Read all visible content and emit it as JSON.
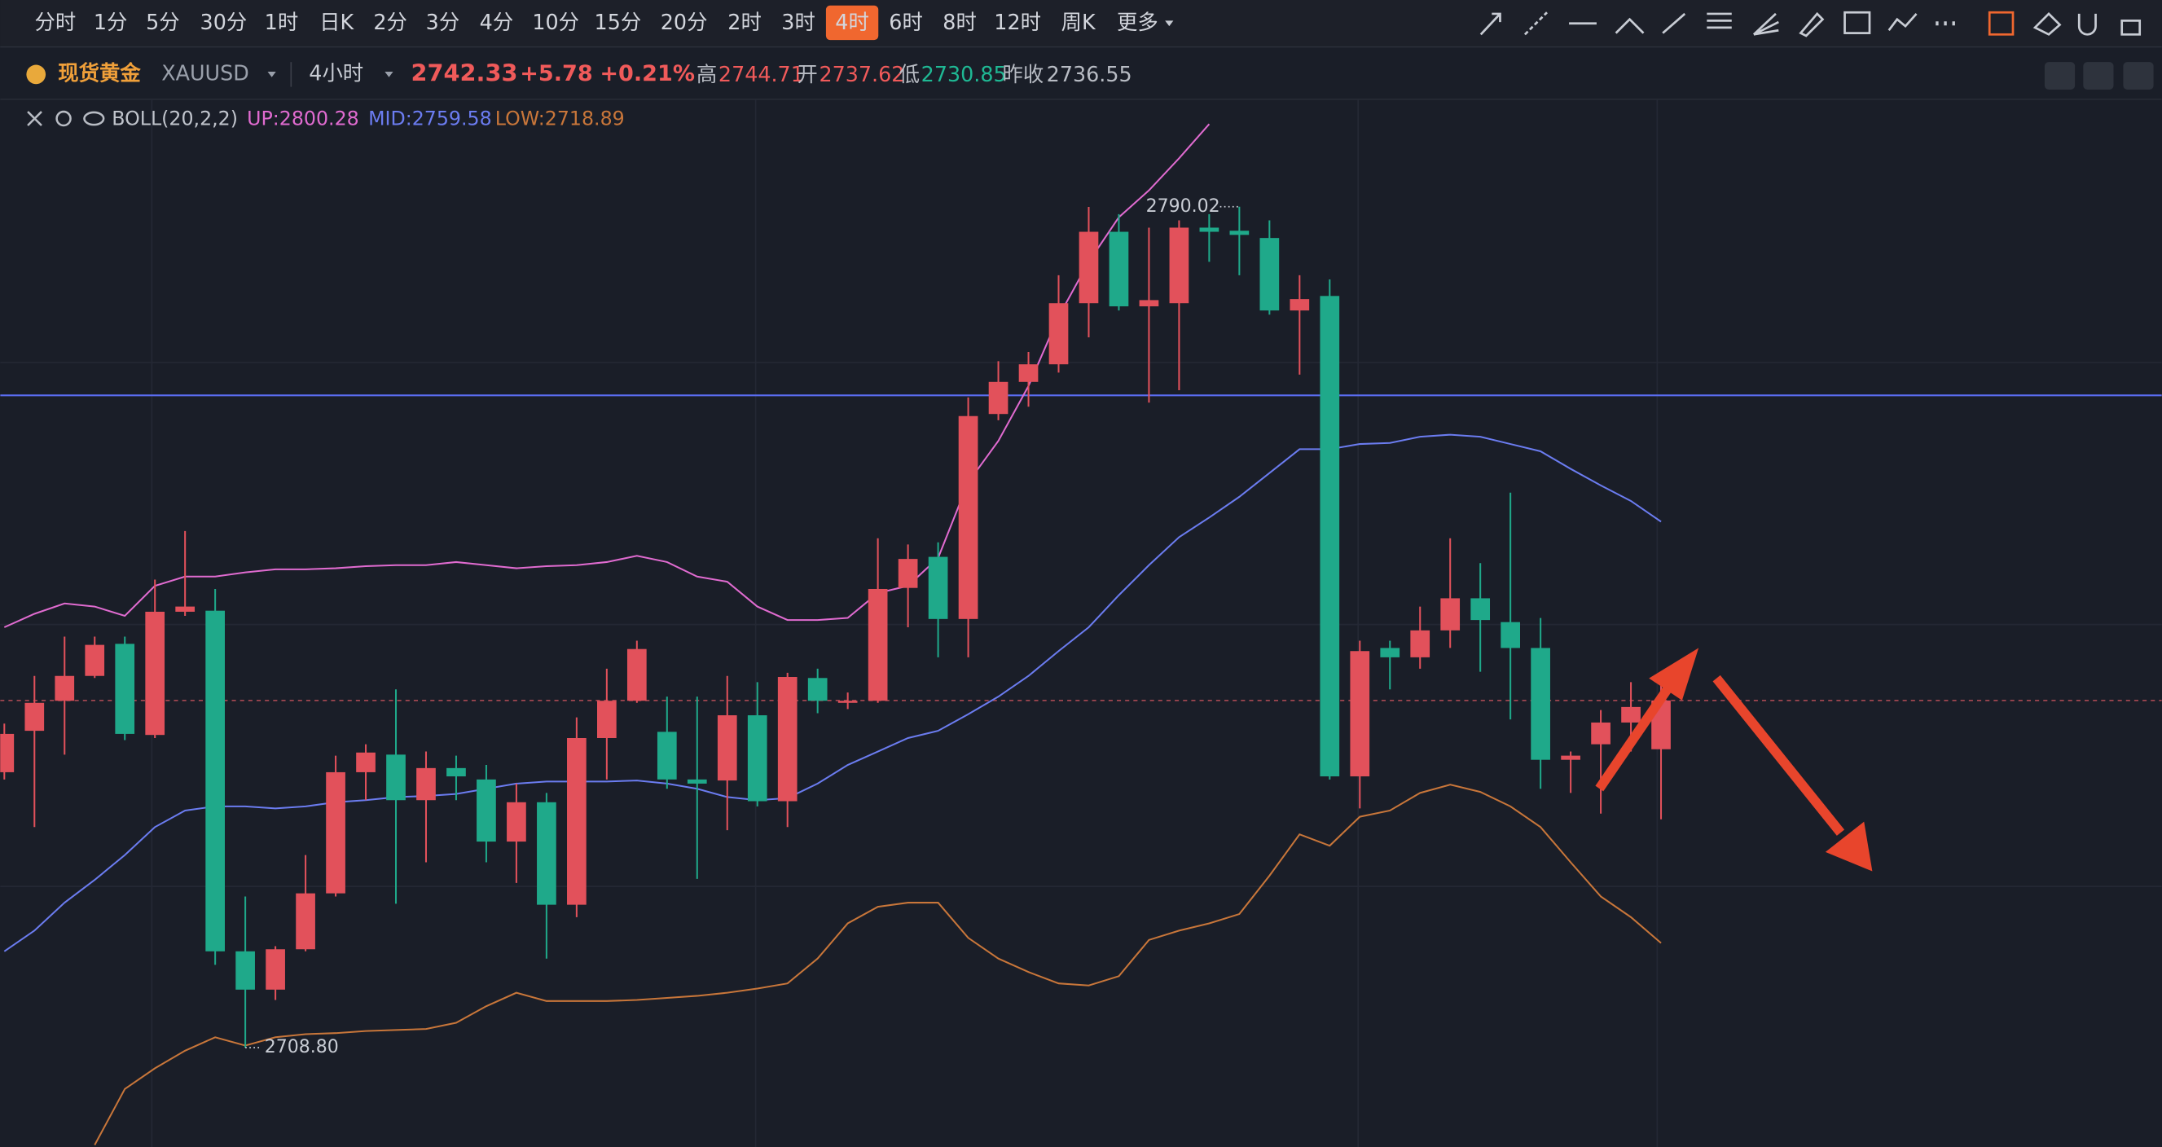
{
  "toolbar": {
    "periods": [
      "分时",
      "1分",
      "5分",
      "30分",
      "1时",
      "日K",
      "2分",
      "3分",
      "4分",
      "10分",
      "15分",
      "20分",
      "2时",
      "3时",
      "4时",
      "6时",
      "8时",
      "12时",
      "周K",
      "更多"
    ],
    "active": "4时"
  },
  "header": {
    "name": "现货黄金",
    "symbol": "XAUUSD",
    "interval": "4小时",
    "price": "2742.33",
    "change": "+5.78",
    "change_pct": "+0.21%",
    "stats": [
      {
        "label": "高",
        "value": "2744.71"
      },
      {
        "label": "开",
        "value": "2737.62"
      },
      {
        "label": "低",
        "value": "2730.85"
      },
      {
        "label": "昨收",
        "value": "2736.55"
      }
    ]
  },
  "indicator": {
    "name": "BOLL(20,2,2)"
  },
  "chart_data": {
    "type": "candlestick",
    "up_color": "#e2515b",
    "down_color": "#1fa98a",
    "ylim": [
      2699.2,
      2800.4
    ],
    "open": [
      2735.4,
      2739.4,
      2742.3,
      2744.7,
      2747.8,
      2739.0,
      2750.9,
      2751.0,
      2718.1,
      2714.4,
      2718.3,
      2723.7,
      2735.4,
      2737.1,
      2732.7,
      2735.8,
      2734.7,
      2728.7,
      2732.5,
      2722.6,
      2738.7,
      2742.3,
      2739.3,
      2734.7,
      2734.6,
      2740.9,
      2732.6,
      2744.5,
      2742.1,
      2742.3,
      2753.2,
      2756.2,
      2750.2,
      2770.0,
      2773.1,
      2774.8,
      2780.7,
      2787.6,
      2780.4,
      2780.7,
      2788.0,
      2787.7,
      2787.0,
      2780.0,
      2781.4,
      2735.0,
      2747.4,
      2746.5,
      2749.1,
      2752.2,
      2749.9,
      2747.4,
      2736.6,
      2738.1,
      2740.2,
      2737.62
    ],
    "high": [
      2740.1,
      2744.7,
      2748.5,
      2748.5,
      2748.5,
      2754.0,
      2758.7,
      2753.1,
      2723.4,
      2718.6,
      2727.4,
      2737.0,
      2738.1,
      2743.4,
      2737.4,
      2737.0,
      2736.1,
      2734.3,
      2733.4,
      2740.7,
      2745.4,
      2748.1,
      2742.7,
      2742.7,
      2744.7,
      2744.1,
      2745.0,
      2745.4,
      2743.1,
      2758.0,
      2757.4,
      2757.6,
      2771.6,
      2775.1,
      2776.0,
      2783.4,
      2790.0,
      2789.3,
      2788.0,
      2788.7,
      2789.3,
      2790.02,
      2788.7,
      2783.4,
      2783.0,
      2748.1,
      2748.1,
      2751.4,
      2758.0,
      2755.6,
      2762.4,
      2750.3,
      2737.4,
      2741.4,
      2744.1,
      2744.71
    ],
    "low": [
      2734.7,
      2730.1,
      2737.1,
      2744.5,
      2738.5,
      2738.7,
      2750.5,
      2716.8,
      2708.8,
      2713.4,
      2718.1,
      2723.4,
      2732.7,
      2722.7,
      2726.7,
      2732.7,
      2726.7,
      2724.7,
      2717.4,
      2721.4,
      2734.7,
      2742.1,
      2733.8,
      2725.1,
      2729.8,
      2732.1,
      2730.1,
      2741.1,
      2741.5,
      2742.1,
      2749.4,
      2746.5,
      2746.5,
      2769.4,
      2770.7,
      2774.0,
      2777.4,
      2780.0,
      2771.1,
      2772.3,
      2784.7,
      2783.4,
      2779.6,
      2773.8,
      2734.7,
      2731.9,
      2743.4,
      2745.4,
      2747.4,
      2745.1,
      2740.5,
      2733.8,
      2733.4,
      2731.4,
      2737.4,
      2730.85
    ],
    "close": [
      2739.1,
      2742.1,
      2744.7,
      2747.7,
      2739.1,
      2750.9,
      2751.4,
      2718.1,
      2714.4,
      2718.3,
      2723.7,
      2735.4,
      2737.3,
      2732.7,
      2735.8,
      2735.0,
      2728.7,
      2732.5,
      2722.6,
      2738.7,
      2742.3,
      2747.3,
      2734.7,
      2734.3,
      2740.9,
      2732.6,
      2744.6,
      2742.3,
      2742.3,
      2753.1,
      2756.0,
      2750.2,
      2769.8,
      2773.1,
      2774.8,
      2780.7,
      2787.6,
      2780.4,
      2781.0,
      2788.0,
      2787.6,
      2787.3,
      2780.0,
      2781.1,
      2735.0,
      2747.1,
      2746.5,
      2749.1,
      2752.2,
      2750.1,
      2747.4,
      2736.6,
      2737.0,
      2740.2,
      2741.7,
      2742.33
    ],
    "series": [
      {
        "name": "UP:2800.28",
        "color": "#e06bd0",
        "values": [
          2749.4,
          2750.7,
          2751.7,
          2751.4,
          2750.5,
          2753.4,
          2754.3,
          2754.3,
          2754.7,
          2755.0,
          2755.0,
          2755.1,
          2755.3,
          2755.4,
          2755.4,
          2755.7,
          2755.4,
          2755.1,
          2755.3,
          2755.4,
          2755.7,
          2756.3,
          2755.7,
          2754.3,
          2753.8,
          2751.4,
          2750.1,
          2750.1,
          2750.3,
          2752.7,
          2753.4,
          2756.1,
          2763.4,
          2767.4,
          2772.7,
          2779.4,
          2784.7,
          2789.0,
          2791.6,
          2794.7,
          2798.0,
          null,
          null,
          null,
          null,
          null,
          null,
          null,
          null,
          null,
          null,
          null,
          null,
          null,
          null,
          null
        ]
      },
      {
        "name": "MID:2759.58",
        "color": "#6b7cf0",
        "values": [
          2718.1,
          2720.1,
          2722.8,
          2725.0,
          2727.4,
          2730.1,
          2731.7,
          2732.1,
          2732.1,
          2731.9,
          2732.1,
          2732.5,
          2732.7,
          2733.0,
          2733.1,
          2733.3,
          2733.8,
          2734.3,
          2734.5,
          2734.5,
          2734.5,
          2734.6,
          2734.3,
          2733.8,
          2733.0,
          2732.7,
          2732.9,
          2734.3,
          2736.1,
          2737.4,
          2738.7,
          2739.4,
          2741.0,
          2742.7,
          2744.7,
          2747.1,
          2749.4,
          2752.5,
          2755.4,
          2758.1,
          2760.0,
          2762.0,
          2764.3,
          2766.6,
          2766.6,
          2767.1,
          2767.2,
          2767.8,
          2768.0,
          2767.8,
          2767.1,
          2766.4,
          2764.7,
          2763.1,
          2761.6,
          2759.6
        ]
      },
      {
        "name": "LOW:2718.89",
        "color": "#c8763a",
        "values": [
          null,
          null,
          null,
          2699.4,
          2704.8,
          2706.8,
          2708.5,
          2709.8,
          2709.0,
          2709.8,
          2710.1,
          2710.2,
          2710.4,
          2710.5,
          2710.6,
          2711.2,
          2712.8,
          2714.1,
          2713.3,
          2713.3,
          2713.3,
          2713.4,
          2713.6,
          2713.8,
          2714.1,
          2714.5,
          2715.0,
          2717.4,
          2720.8,
          2722.4,
          2722.8,
          2722.8,
          2719.4,
          2717.4,
          2716.1,
          2715.0,
          2714.8,
          2715.7,
          2719.2,
          2720.1,
          2720.8,
          2721.7,
          2725.4,
          2729.4,
          2728.3,
          2731.1,
          2731.7,
          2733.4,
          2734.2,
          2733.5,
          2732.1,
          2730.1,
          2726.7,
          2723.4,
          2721.4,
          2718.9
        ]
      }
    ],
    "hline": {
      "value": 2771.8,
      "color": "#5a6cf0"
    },
    "price_line": {
      "value": 2742.33,
      "color": "#a04650"
    },
    "annotations": [
      "2790.02",
      "2708.80"
    ]
  }
}
